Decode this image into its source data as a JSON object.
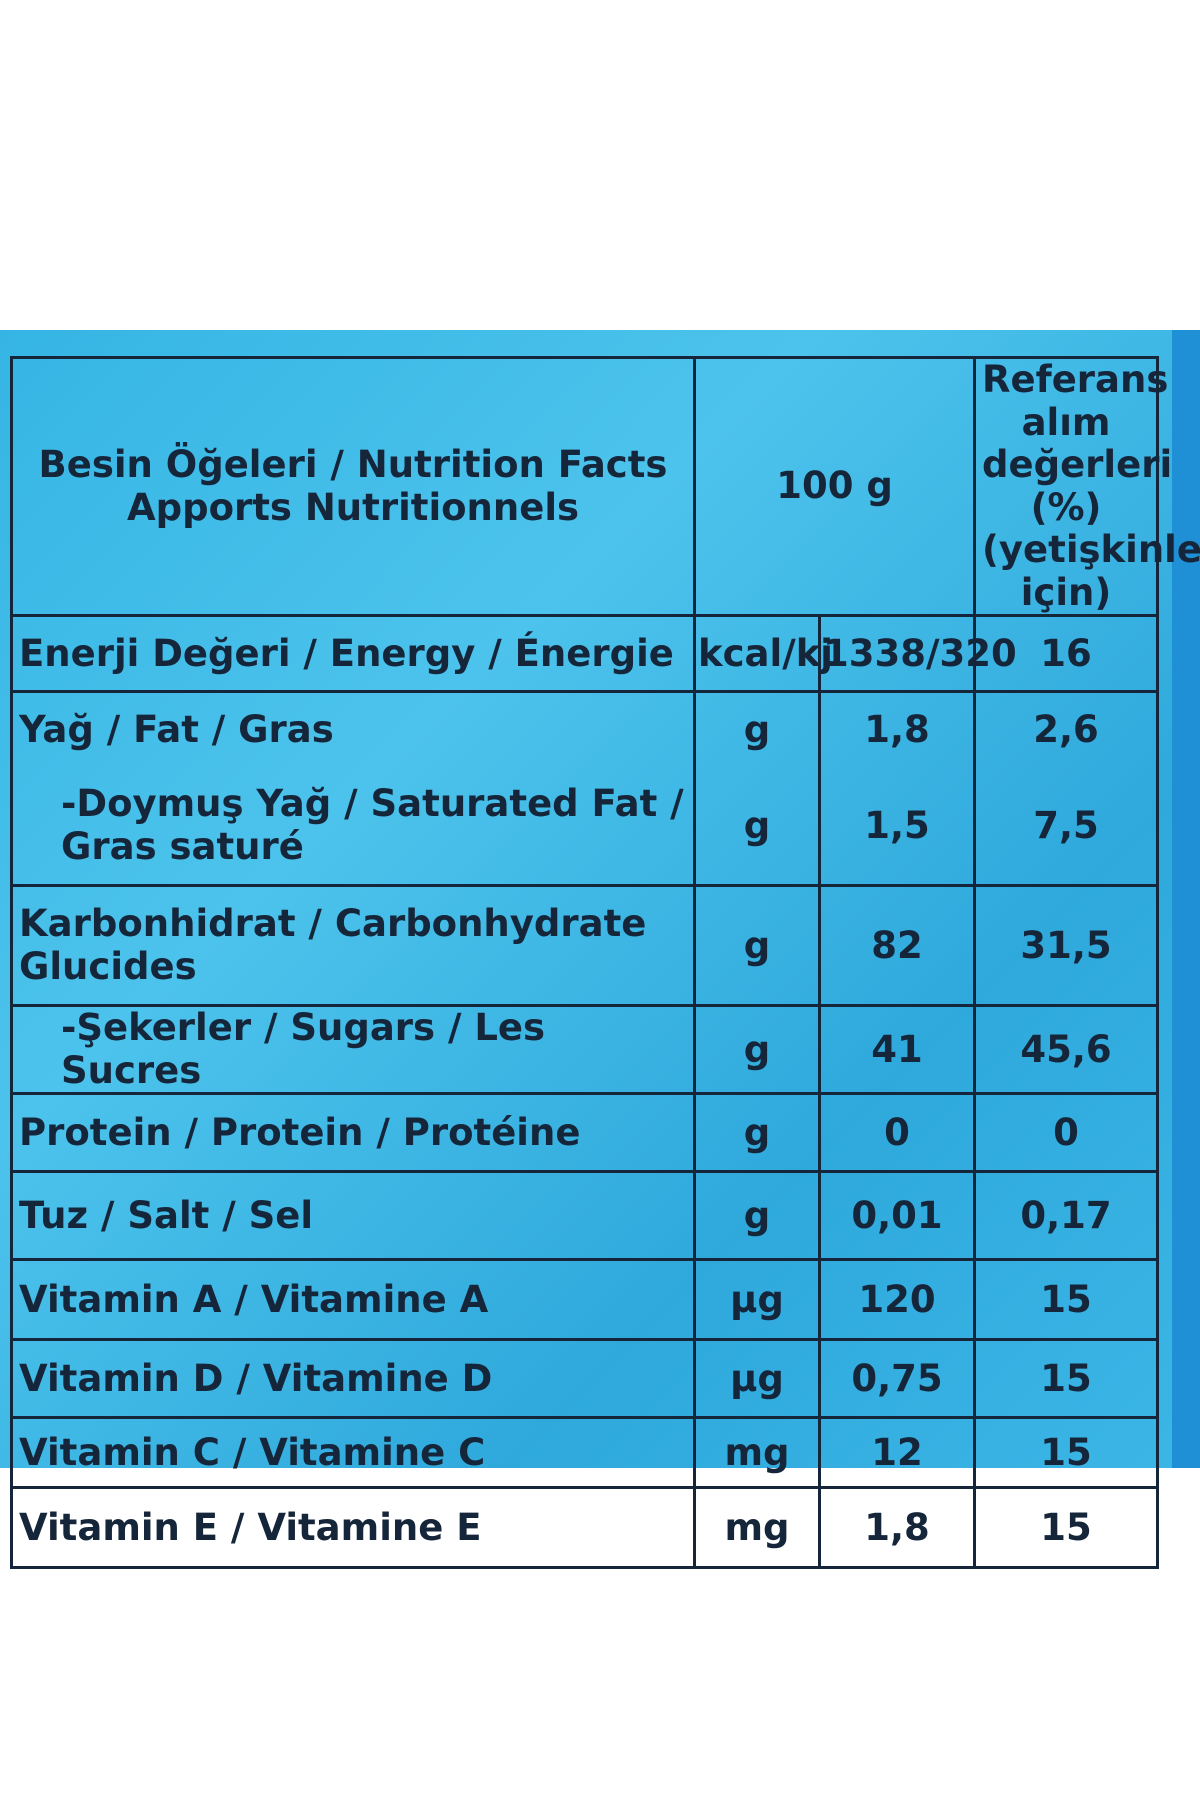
{
  "header": {
    "title_line1": "Besin Öğeleri / Nutrition Facts",
    "title_line2": "Apports Nutritionnels",
    "amount": "100 g",
    "reference_line1": "Referans alım",
    "reference_line2": "değerleri (%)",
    "reference_line3": "(yetişkinler",
    "reference_line4": "için)"
  },
  "rows": [
    {
      "name": "Enerji Değeri / Energy / Énergie",
      "unit": "kcal/kj",
      "value": "1338/320",
      "ref": "16"
    },
    {
      "name": "Yağ / Fat / Gras",
      "unit": "g",
      "value": "1,8",
      "ref": "2,6"
    },
    {
      "name_line1": "-Doymuş  Yağ / Saturated Fat /",
      "name_line2": "Gras saturé",
      "unit": "g",
      "value": "1,5",
      "ref": "7,5"
    },
    {
      "name_line1": "Karbonhidrat / Carbonhydrate",
      "name_line2": "Glucides",
      "unit": "g",
      "value": "82",
      "ref": "31,5"
    },
    {
      "name": "-Şekerler / Sugars / Les Sucres",
      "unit": "g",
      "value": "41",
      "ref": "45,6"
    },
    {
      "name": "Protein / Protein / Protéine",
      "unit": "g",
      "value": "0",
      "ref": "0"
    },
    {
      "name": "Tuz / Salt / Sel",
      "unit": "g",
      "value": "0,01",
      "ref": "0,17"
    },
    {
      "name": "Vitamin A / Vitamine A",
      "unit": "µg",
      "value": "120",
      "ref": "15"
    },
    {
      "name": "Vitamin D / Vitamine D",
      "unit": "µg",
      "value": "0,75",
      "ref": "15"
    },
    {
      "name": "Vitamin C / Vitamine C",
      "unit": "mg",
      "value": "12",
      "ref": "15"
    },
    {
      "name": "Vitamin E / Vitamine E",
      "unit": "mg",
      "value": "1,8",
      "ref": "15"
    }
  ],
  "colors": {
    "background": "#ffffff",
    "label_blue": "#35b5e4",
    "ink": "#16263a"
  }
}
